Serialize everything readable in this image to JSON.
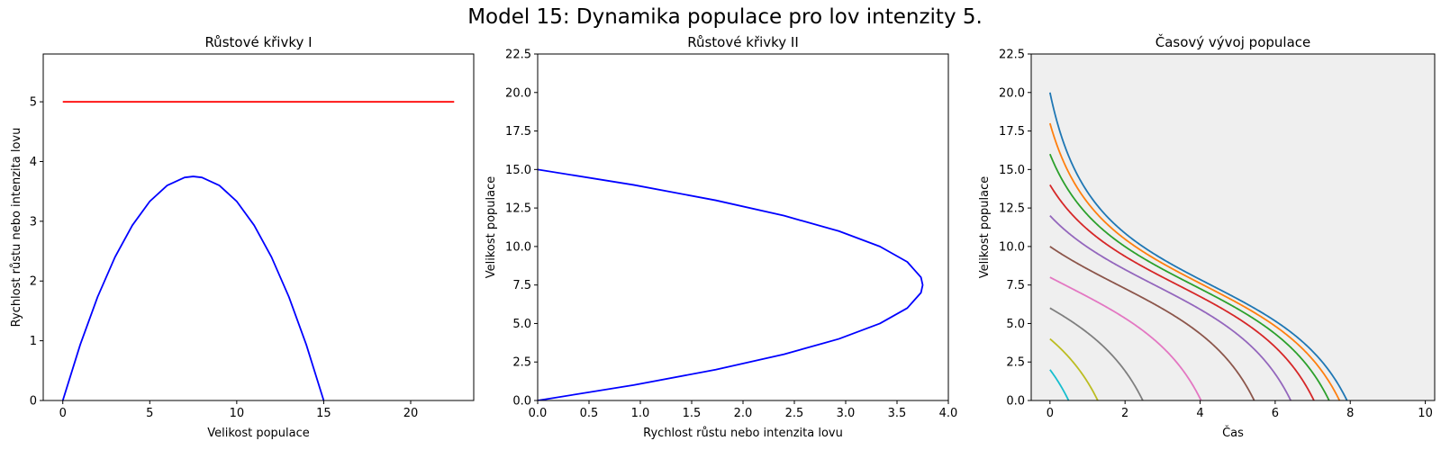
{
  "suptitle": "Model 15: Dynamika populace pro lov intenzity 5.",
  "chart_data": [
    {
      "type": "line",
      "title": "Růstové křivky I",
      "xlabel": "Velikost populace",
      "ylabel": "Rychlost růstu nebo intenzita lovu",
      "xlim": [
        -1.125,
        23.625
      ],
      "ylim": [
        0,
        5.8
      ],
      "xticks": [
        0,
        5,
        10,
        15,
        20
      ],
      "xtick_labels": [
        "0",
        "5",
        "10",
        "15",
        "20"
      ],
      "yticks": [
        0,
        1,
        2,
        3,
        4,
        5
      ],
      "ytick_labels": [
        "0",
        "1",
        "2",
        "3",
        "4",
        "5"
      ],
      "background": "#ffffff",
      "series": [
        {
          "color": "#0000ff",
          "points": [
            [
              0,
              0
            ],
            [
              1,
              0.9333
            ],
            [
              2,
              1.7333
            ],
            [
              3,
              2.4
            ],
            [
              4,
              2.9333
            ],
            [
              5,
              3.3333
            ],
            [
              6,
              3.6
            ],
            [
              7,
              3.7333
            ],
            [
              7.5,
              3.75
            ],
            [
              8,
              3.7333
            ],
            [
              9,
              3.6
            ],
            [
              10,
              3.3333
            ],
            [
              11,
              2.9333
            ],
            [
              12,
              2.4
            ],
            [
              13,
              1.7333
            ],
            [
              14,
              0.9333
            ],
            [
              15,
              0
            ]
          ]
        },
        {
          "color": "#ff0000",
          "points": [
            [
              0,
              5
            ],
            [
              22.5,
              5
            ]
          ]
        }
      ]
    },
    {
      "type": "line",
      "title": "Růstové křivky II",
      "xlabel": "Rychlost růstu nebo intenzita lovu",
      "ylabel": "Velikost populace",
      "xlim": [
        0,
        4.0
      ],
      "ylim": [
        0,
        22.5
      ],
      "xticks": [
        0,
        0.5,
        1,
        1.5,
        2,
        2.5,
        3,
        3.5,
        4
      ],
      "xtick_labels": [
        "0.0",
        "0.5",
        "1.0",
        "1.5",
        "2.0",
        "2.5",
        "3.0",
        "3.5",
        "4.0"
      ],
      "yticks": [
        0,
        2.5,
        5,
        7.5,
        10,
        12.5,
        15,
        17.5,
        20,
        22.5
      ],
      "ytick_labels": [
        "0.0",
        "2.5",
        "5.0",
        "7.5",
        "10.0",
        "12.5",
        "15.0",
        "17.5",
        "20.0",
        "22.5"
      ],
      "background": "#ffffff",
      "series": [
        {
          "color": "#0000ff",
          "points": [
            [
              0,
              0
            ],
            [
              0.9333,
              1
            ],
            [
              1.7333,
              2
            ],
            [
              2.4,
              3
            ],
            [
              2.9333,
              4
            ],
            [
              3.3333,
              5
            ],
            [
              3.6,
              6
            ],
            [
              3.7333,
              7
            ],
            [
              3.75,
              7.5
            ],
            [
              3.7333,
              8
            ],
            [
              3.6,
              9
            ],
            [
              3.3333,
              10
            ],
            [
              2.9333,
              11
            ],
            [
              2.4,
              12
            ],
            [
              1.7333,
              13
            ],
            [
              0.9333,
              14
            ],
            [
              0,
              15
            ]
          ]
        }
      ]
    },
    {
      "type": "line",
      "title": "Časový vývoj populace",
      "xlabel": "Čas",
      "ylabel": "Velikost populace",
      "xlim": [
        -0.5,
        10.25
      ],
      "ylim": [
        0,
        22.5
      ],
      "xticks": [
        0,
        2,
        4,
        6,
        8,
        10
      ],
      "xtick_labels": [
        "0",
        "2",
        "4",
        "6",
        "8",
        "10"
      ],
      "yticks": [
        0,
        2.5,
        5,
        7.5,
        10,
        12.5,
        15,
        17.5,
        20,
        22.5
      ],
      "ytick_labels": [
        "0.0",
        "2.5",
        "5.0",
        "7.5",
        "10.0",
        "12.5",
        "15.0",
        "17.5",
        "20.0",
        "22.5"
      ],
      "background": "#efefef",
      "series": [
        {
          "color": "#1f77b4",
          "y0": 20,
          "t_end": 7.96
        },
        {
          "color": "#ff7f0e",
          "y0": 18,
          "t_end": 7.77
        },
        {
          "color": "#2ca02c",
          "y0": 16,
          "t_end": 7.47
        },
        {
          "color": "#d62728",
          "y0": 14,
          "t_end": 7.07
        },
        {
          "color": "#9467bd",
          "y0": 12,
          "t_end": 6.41
        },
        {
          "color": "#8c564b",
          "y0": 10,
          "t_end": 5.48
        },
        {
          "color": "#e377c2",
          "y0": 8,
          "t_end": 4.01
        },
        {
          "color": "#7f7f7f",
          "y0": 6,
          "t_end": 2.48
        },
        {
          "color": "#bcbd22",
          "y0": 4,
          "t_end": 1.26
        },
        {
          "color": "#17becf",
          "y0": 2,
          "t_end": 0.5
        }
      ]
    }
  ]
}
